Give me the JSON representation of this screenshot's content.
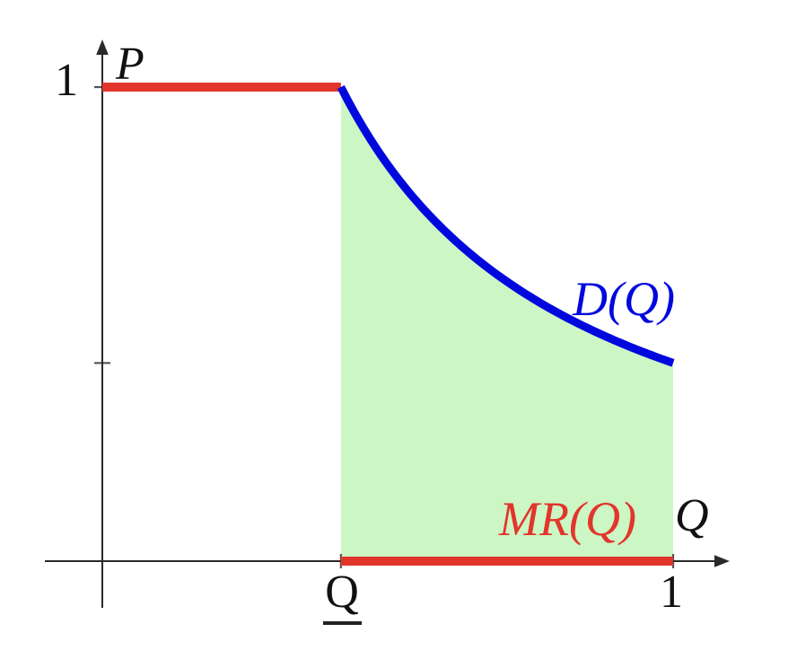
{
  "labels": {
    "p_axis": "P",
    "q_axis": "Q",
    "y_one": "1",
    "x_one": "1",
    "q_low": "Q",
    "demand": "D(Q)",
    "marginal_revenue": "MR(Q)"
  },
  "colors": {
    "demand_blue": "#0008dd",
    "revenue_red": "#e2352b",
    "region_green": "#ccf6c4",
    "axis_black": "#2a2a2a",
    "tick_gray": "#555555"
  },
  "chart_data": {
    "type": "line",
    "title": "",
    "xlabel": "Q",
    "ylabel": "P",
    "xlim": [
      0,
      1.1
    ],
    "ylim": [
      0,
      1.15
    ],
    "grid": false,
    "q_low": 0.418,
    "x_ticks": [
      {
        "value": 0.418,
        "label": "Q",
        "underlined": true
      },
      {
        "value": 1,
        "label": "1"
      }
    ],
    "y_ticks": [
      {
        "value": 1,
        "label": "1"
      },
      {
        "value": 0.418,
        "label": ""
      }
    ],
    "series": [
      {
        "name": "price-cap",
        "label": "",
        "type": "segment",
        "color": "#e2352b",
        "width": 10,
        "points": [
          [
            0,
            1
          ],
          [
            0.418,
            1
          ]
        ]
      },
      {
        "name": "demand",
        "label": "D(Q)",
        "type": "curve",
        "color": "#0008dd",
        "width": 9,
        "formula": "D(Q) = q_low / Q",
        "domain": [
          0.418,
          1
        ],
        "endpoints": [
          [
            0.418,
            1
          ],
          [
            1,
            0.418
          ]
        ]
      },
      {
        "name": "marginal-revenue",
        "label": "MR(Q)",
        "type": "segment",
        "color": "#e2352b",
        "width": 10,
        "points": [
          [
            0.418,
            0
          ],
          [
            1,
            0
          ]
        ]
      }
    ],
    "shaded_region": {
      "color": "#ccf6c4",
      "description": "area under D(Q) between Q_low and 1",
      "x_range": [
        0.418,
        1
      ]
    },
    "annotations": [
      {
        "text": "D(Q)",
        "color": "#0008dd",
        "near": [
          0.86,
          0.62
        ]
      },
      {
        "text": "MR(Q)",
        "color": "#e2352b",
        "near": [
          0.83,
          0.1
        ]
      },
      {
        "text": "Q",
        "underlined": true,
        "axis": "x",
        "at": 0.418
      },
      {
        "text": "1",
        "axis": "x",
        "at": 1
      },
      {
        "text": "1",
        "axis": "y",
        "at": 1
      }
    ]
  }
}
